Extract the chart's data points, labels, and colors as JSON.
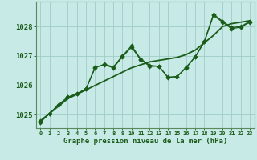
{
  "title": "Graphe pression niveau de la mer (hPa)",
  "bg_color": "#c8eae6",
  "grid_color": "#a0ccc6",
  "line_color": "#1a5c1a",
  "xlim": [
    -0.5,
    23.5
  ],
  "ylim": [
    1024.55,
    1028.85
  ],
  "x_ticks": [
    0,
    1,
    2,
    3,
    4,
    5,
    6,
    7,
    8,
    9,
    10,
    11,
    12,
    13,
    14,
    15,
    16,
    17,
    18,
    19,
    20,
    21,
    22,
    23
  ],
  "y_ticks": [
    1025,
    1026,
    1027,
    1028
  ],
  "series_trend": [
    1024.8,
    1025.05,
    1025.3,
    1025.55,
    1025.7,
    1025.85,
    1026.0,
    1026.15,
    1026.3,
    1026.45,
    1026.6,
    1026.7,
    1026.8,
    1026.85,
    1026.9,
    1026.95,
    1027.05,
    1027.2,
    1027.45,
    1027.7,
    1028.0,
    1028.1,
    1028.15,
    1028.2
  ],
  "series_line1": [
    1024.8,
    1025.05,
    1025.35,
    1025.6,
    1025.72,
    1025.88,
    1026.6,
    1026.72,
    1026.63,
    1027.0,
    1027.35,
    1026.9,
    1026.68,
    1026.65,
    1026.27,
    1026.3,
    1026.62,
    1026.97,
    1027.5,
    1028.42,
    1028.18,
    1027.97,
    1028.0,
    1028.18
  ],
  "series_line2": [
    1024.75,
    1025.05,
    1025.35,
    1025.6,
    1025.72,
    1025.88,
    1026.62,
    1026.7,
    1026.6,
    1026.97,
    1027.3,
    1026.87,
    1026.65,
    1026.65,
    1026.28,
    1026.3,
    1026.6,
    1026.97,
    1027.48,
    1028.38,
    1028.15,
    1027.93,
    1027.98,
    1028.15
  ]
}
